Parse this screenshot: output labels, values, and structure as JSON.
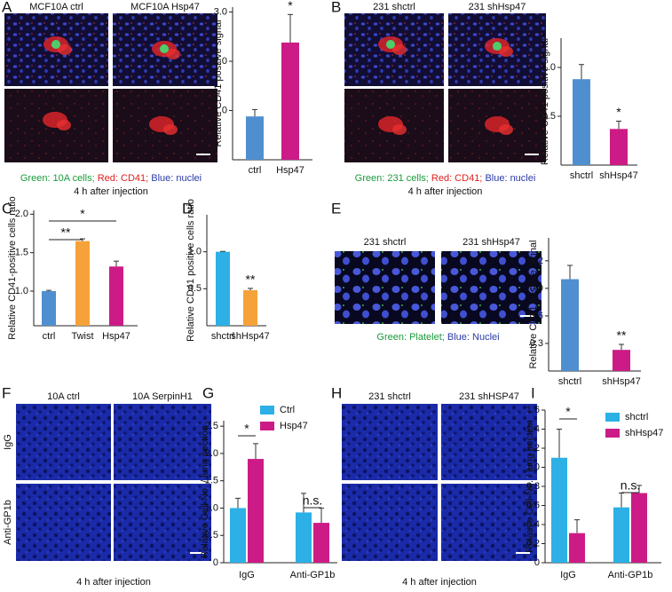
{
  "panel_letters": [
    "A",
    "B",
    "C",
    "D",
    "E",
    "F",
    "G",
    "H",
    "I"
  ],
  "images": [
    {
      "headers": [
        "MCF10A ctrl",
        "MCF10A Hsp47"
      ],
      "legend": [
        {
          "text": "Green: 10A cells;",
          "color": "#1a9a3a"
        },
        {
          "text": "Red: CD41;",
          "color": "#e0201e"
        },
        {
          "text": "Blue: nuclei",
          "color": "#2a3aa8"
        }
      ],
      "caption": "4 h after injection"
    },
    {
      "headers": [
        "231 shctrl",
        "231 shHsp47"
      ],
      "legend": [
        {
          "text": "Green: 231 cells;",
          "color": "#1a9a3a"
        },
        {
          "text": "Red: CD41;",
          "color": "#e0201e"
        },
        {
          "text": "Blue: nuclei",
          "color": "#2a3aa8"
        }
      ],
      "caption": "4 h after injection"
    },
    {
      "headers": [
        "231 shctrl",
        "231 shHsp47"
      ],
      "legend": [
        {
          "text": "Green: Platelet;",
          "color": "#1a9a3a"
        },
        {
          "text": "Blue: Nuclei",
          "color": "#2a3aa8"
        }
      ]
    },
    {
      "headers": [
        "10A ctrl",
        "10A SerpinH1"
      ],
      "rows": [
        "IgG",
        "Anti-GP1b"
      ],
      "caption": "4 h after injection"
    },
    {
      "headers": [
        "231 shctrl",
        "231 shHSP47"
      ],
      "caption": "4 h after injection"
    }
  ],
  "chart_data": [
    {
      "type": "bar",
      "ylabel": "Relative CD41 positive signal",
      "categories": [
        "ctrl",
        "Hsp47"
      ],
      "values": [
        0.88,
        2.38
      ],
      "errors": [
        0.14,
        0.57
      ],
      "colors": [
        "#4f8fd0",
        "#cc1b86"
      ],
      "ylim": [
        0,
        3.1
      ],
      "yticks": [
        {
          "value": 1,
          "label": "1.0"
        },
        {
          "value": 2,
          "label": "2.0"
        },
        {
          "value": 3,
          "label": "3.0"
        }
      ],
      "annotations": [
        "*"
      ]
    },
    {
      "type": "bar",
      "ylabel": "Relative CD41 positive signal",
      "categories": [
        "shctrl",
        "shHsp47"
      ],
      "values": [
        0.88,
        0.37
      ],
      "errors": [
        0.15,
        0.08
      ],
      "colors": [
        "#4f8fd0",
        "#cc1b86"
      ],
      "ylim": [
        0,
        1.3
      ],
      "yticks": [
        0.5,
        {
          "value": 1,
          "label": "1.0"
        }
      ],
      "annotations": [
        "*"
      ]
    },
    {
      "type": "bar",
      "ylabel": "Relative CD41-positive cells ratio",
      "categories": [
        "ctrl",
        "Twist",
        "Hsp47"
      ],
      "values": [
        1.0,
        1.65,
        1.32
      ],
      "errors": [
        0.01,
        0.03,
        0.07
      ],
      "colors": [
        "#4f8fd0",
        "#f5a23a",
        "#cc1b86"
      ],
      "ylim": [
        0.55,
        2.05
      ],
      "yticks": [
        {
          "value": 1,
          "label": "1.0"
        },
        1.5,
        {
          "value": 2,
          "label": "2.0"
        }
      ],
      "annotations": [
        "**",
        "*"
      ]
    },
    {
      "type": "bar",
      "ylabel": "Relative CD41 positive cells ratio",
      "categories": [
        "shctrl",
        "shHsp47"
      ],
      "values": [
        1.0,
        0.48
      ],
      "errors": [
        0.005,
        0.025
      ],
      "colors": [
        "#2cb0e6",
        "#f5a23a"
      ],
      "ylim": [
        0,
        1.5
      ],
      "yticks": [
        0.5,
        {
          "value": 1,
          "label": "1.0"
        }
      ],
      "annotations": [
        "**"
      ]
    },
    {
      "type": "bar",
      "ylabel": "Relative CD41 positive Signal",
      "categories": [
        "shctrl",
        "shHsp47"
      ],
      "values": [
        1.0,
        0.23
      ],
      "errors": [
        0.15,
        0.06
      ],
      "colors": [
        "#4f8fd0",
        "#cc1b86"
      ],
      "ylim": [
        0,
        1.45
      ],
      "yticks": [
        0.3,
        0.6,
        0.9,
        1.2
      ],
      "annotations": [
        "**"
      ]
    },
    {
      "type": "grouped-bar",
      "ylabel": "Relative Cell No. / lung section",
      "categories": [
        "IgG",
        "Anti-GP1b"
      ],
      "series": [
        {
          "name": "Ctrl",
          "color": "#2cb0e6",
          "values": [
            1.0,
            0.92
          ],
          "errors": [
            0.18,
            0.35
          ]
        },
        {
          "name": "Hsp47",
          "color": "#cc1b86",
          "values": [
            1.9,
            0.73
          ],
          "errors": [
            0.28,
            0.27
          ]
        }
      ],
      "ylim": [
        0,
        2.6
      ],
      "yticks": [
        0,
        0.5,
        {
          "value": 1,
          "label": "1.0"
        },
        1.5,
        {
          "value": 2,
          "label": "2.0"
        },
        2.5
      ],
      "annotations": [
        "*",
        "n.s."
      ]
    },
    {
      "type": "grouped-bar",
      "ylabel": "Relative Cell No. / lung section",
      "categories": [
        "IgG",
        "Anti-GP1b"
      ],
      "series": [
        {
          "name": "shctrl",
          "color": "#2cb0e6",
          "values": [
            1.1,
            0.58
          ],
          "errors": [
            0.3,
            0.15
          ]
        },
        {
          "name": "shHsp47",
          "color": "#cc1b86",
          "values": [
            0.31,
            0.73
          ],
          "errors": [
            0.14,
            0.08
          ]
        }
      ],
      "ylim": [
        0,
        1.6
      ],
      "yticks": [
        0,
        0.2,
        0.4,
        0.6,
        0.8,
        {
          "value": 1,
          "label": "1.0"
        },
        1.2,
        1.4,
        1.6
      ],
      "annotations": [
        "*",
        "n.s."
      ]
    }
  ]
}
